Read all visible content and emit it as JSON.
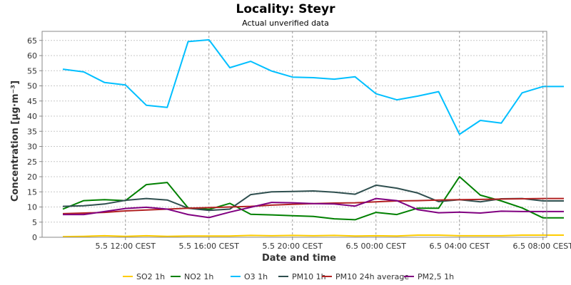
{
  "chart_data": {
    "type": "line",
    "title": "Locality: Steyr",
    "subtitle": "Actual unverified data",
    "xlabel": "Date and time",
    "ylabel": "Concentration [µg·m⁻³]",
    "ylim": [
      0,
      68
    ],
    "yticks": [
      "0",
      "5",
      "10",
      "15",
      "20",
      "25",
      "30",
      "35",
      "40",
      "45",
      "50",
      "55",
      "60",
      "65"
    ],
    "xticks": [
      "5.5 12:00 CEST",
      "5.5 16:00 CEST",
      "5.5 20:00 CEST",
      "6.5 00:00 CEST",
      "6.5 04:00 CEST",
      "6.5 08:00 CEST"
    ],
    "x": [
      "5.5 09:00",
      "5.5 10:00",
      "5.5 11:00",
      "5.5 12:00",
      "5.5 13:00",
      "5.5 14:00",
      "5.5 15:00",
      "5.5 16:00",
      "5.5 17:00",
      "5.5 18:00",
      "5.5 19:00",
      "5.5 20:00",
      "5.5 21:00",
      "5.5 22:00",
      "5.5 23:00",
      "6.5 00:00",
      "6.5 01:00",
      "6.5 02:00",
      "6.5 03:00",
      "6.5 04:00",
      "6.5 05:00",
      "6.5 06:00",
      "6.5 07:00",
      "6.5 08:00",
      "6.5 09:00"
    ],
    "grid": true,
    "legend_position": "bottom",
    "series": [
      {
        "name": "SO2 1h",
        "color": "#ffcc00",
        "values": [
          0.2,
          0.3,
          0.5,
          0.3,
          0.5,
          0.3,
          0.4,
          0.4,
          0.4,
          0.6,
          0.5,
          0.6,
          0.5,
          0.6,
          0.4,
          0.5,
          0.4,
          0.7,
          0.7,
          0.5,
          0.5,
          0.5,
          0.7,
          0.7,
          0.7
        ]
      },
      {
        "name": "NO2 1h",
        "color": "#008000",
        "values": [
          9.3,
          12.1,
          12.4,
          12.1,
          17.4,
          18.1,
          9.7,
          9.2,
          11.2,
          7.6,
          7.4,
          7.1,
          6.9,
          6.1,
          5.8,
          8.2,
          7.5,
          9.6,
          9.6,
          20.0,
          13.9,
          12.0,
          9.7,
          6.4,
          6.4
        ]
      },
      {
        "name": "O3 1h",
        "color": "#00bfff",
        "values": [
          55.5,
          54.6,
          51.1,
          50.3,
          43.6,
          42.9,
          64.6,
          65.2,
          56.0,
          58.1,
          54.9,
          52.9,
          52.7,
          52.2,
          53.0,
          47.4,
          45.4,
          46.6,
          48.1,
          34.0,
          38.6,
          37.7,
          47.7,
          49.8,
          49.8
        ]
      },
      {
        "name": "PM10 1h",
        "color": "#2f4f4f",
        "values": [
          10.2,
          10.4,
          11.0,
          12.2,
          12.8,
          12.3,
          9.6,
          8.9,
          9.3,
          14.1,
          15.0,
          15.1,
          15.3,
          14.9,
          14.2,
          17.2,
          16.2,
          14.6,
          11.8,
          12.4,
          11.7,
          12.7,
          12.8,
          12.0,
          12.0
        ]
      },
      {
        "name": "PM10 24h average",
        "color": "#b22222",
        "values": [
          7.8,
          8.0,
          8.2,
          8.7,
          9.0,
          9.3,
          9.6,
          9.8,
          10.0,
          10.2,
          10.6,
          10.9,
          11.1,
          11.3,
          11.4,
          11.7,
          12.0,
          12.1,
          12.3,
          12.4,
          12.5,
          12.6,
          12.7,
          12.8,
          12.8
        ]
      },
      {
        "name": "PM2,5 1h",
        "color": "#800080",
        "values": [
          7.5,
          7.5,
          8.5,
          9.5,
          9.9,
          9.3,
          7.5,
          6.5,
          8.3,
          9.9,
          11.5,
          11.4,
          11.1,
          11.0,
          10.3,
          12.8,
          12.1,
          9.1,
          8.1,
          8.3,
          8.0,
          8.6,
          8.5,
          8.5,
          8.5
        ]
      }
    ]
  }
}
